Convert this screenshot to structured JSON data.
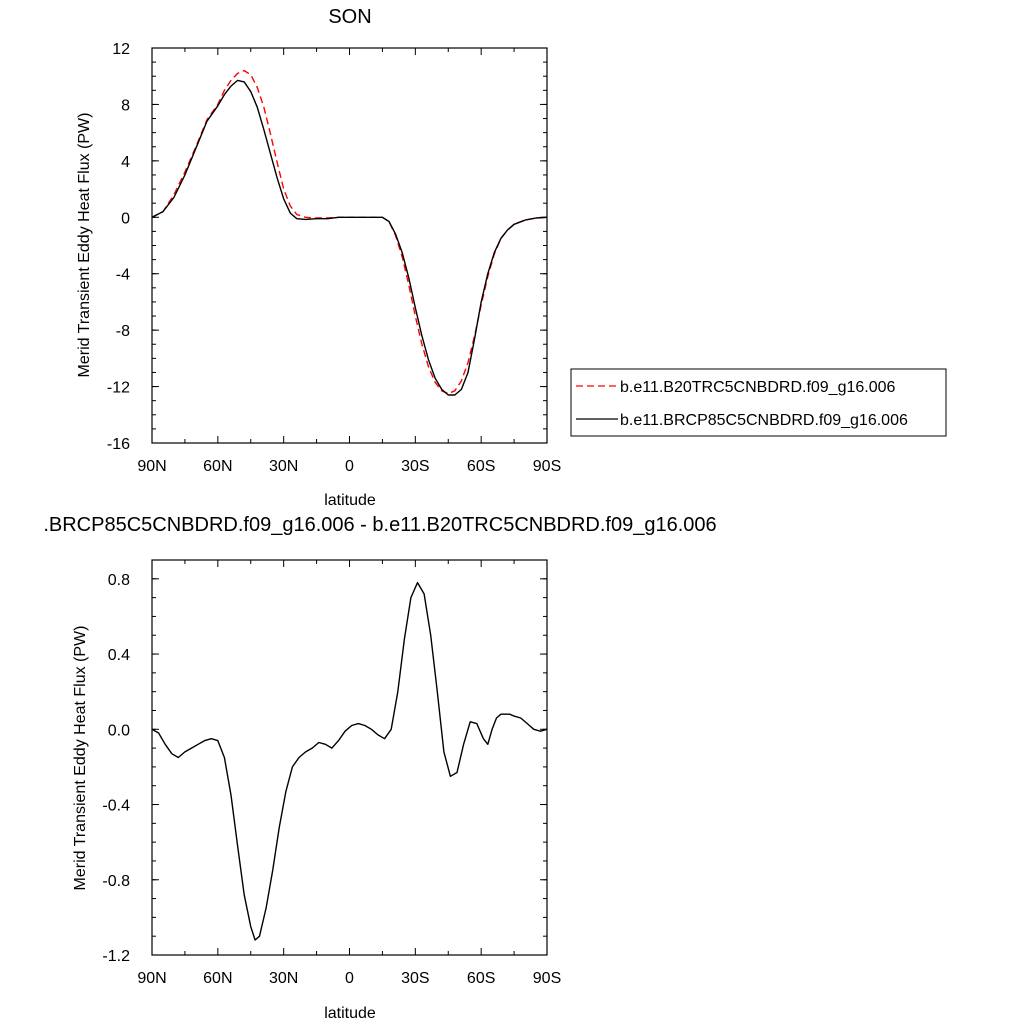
{
  "chart_data": [
    {
      "type": "line",
      "title": "SON",
      "xlabel": "latitude",
      "ylabel": "Merid Transient Eddy Heat Flux (PW)",
      "x_ticks": [
        "90N",
        "60N",
        "30N",
        "0",
        "30S",
        "60S",
        "90S"
      ],
      "x_tick_values": [
        -90,
        -60,
        -30,
        0,
        30,
        60,
        90
      ],
      "x_units": "degrees north (90N = -90, 90S = 90 on display axis)",
      "xlim": [
        -90,
        90
      ],
      "ylim": [
        -16,
        12
      ],
      "y_ticks": [
        12,
        8,
        4,
        0,
        -4,
        -8,
        -12,
        -16
      ],
      "y_tick_labels": [
        "12",
        "8",
        "4",
        "0",
        "-4",
        "-8",
        "-12",
        "-16"
      ],
      "grid": false,
      "legend_position": "right",
      "series": [
        {
          "name": "b.e11.B20TRC5CNBDRD.f09_g16.006",
          "color": "#ff0000",
          "dash": "dashed",
          "x": [
            -90,
            -85,
            -80,
            -75,
            -70,
            -65,
            -60,
            -57,
            -54,
            -51,
            -48,
            -45,
            -42,
            -39,
            -36,
            -33,
            -30,
            -27,
            -24,
            -20,
            -15,
            -10,
            -5,
            0,
            5,
            10,
            15,
            18,
            21,
            24,
            27,
            30,
            33,
            36,
            39,
            42,
            45,
            48,
            51,
            54,
            57,
            60,
            63,
            66,
            69,
            72,
            75,
            80,
            85,
            90
          ],
          "y": [
            0,
            0.4,
            1.6,
            3.2,
            5.0,
            6.9,
            8.0,
            9.0,
            9.7,
            10.2,
            10.4,
            10.1,
            9.2,
            7.8,
            5.9,
            3.9,
            2.0,
            0.8,
            0.2,
            0.0,
            -0.05,
            -0.05,
            0.0,
            0.0,
            0.0,
            0.0,
            0.0,
            -0.3,
            -1.3,
            -2.8,
            -4.8,
            -7.0,
            -9.0,
            -10.6,
            -11.7,
            -12.3,
            -12.5,
            -12.3,
            -11.6,
            -10.3,
            -8.4,
            -6.2,
            -4.2,
            -2.6,
            -1.5,
            -0.9,
            -0.5,
            -0.2,
            -0.05,
            0
          ]
        },
        {
          "name": "b.e11.BRCP85C5CNBDRD.f09_g16.006",
          "color": "#000000",
          "dash": "solid",
          "x": [
            -90,
            -85,
            -80,
            -75,
            -70,
            -65,
            -60,
            -57,
            -54,
            -51,
            -48,
            -45,
            -42,
            -39,
            -36,
            -33,
            -30,
            -27,
            -24,
            -20,
            -15,
            -10,
            -5,
            0,
            5,
            10,
            15,
            18,
            21,
            24,
            27,
            30,
            33,
            36,
            39,
            42,
            45,
            48,
            51,
            54,
            57,
            60,
            63,
            66,
            69,
            72,
            75,
            80,
            85,
            90
          ],
          "y": [
            0,
            0.4,
            1.4,
            3.0,
            4.9,
            6.8,
            7.9,
            8.7,
            9.3,
            9.7,
            9.6,
            8.9,
            7.8,
            6.2,
            4.5,
            2.8,
            1.3,
            0.3,
            -0.1,
            -0.15,
            -0.1,
            -0.1,
            0.0,
            0.0,
            0.0,
            0.0,
            0.0,
            -0.3,
            -1.2,
            -2.5,
            -4.3,
            -6.4,
            -8.4,
            -10.1,
            -11.4,
            -12.2,
            -12.6,
            -12.6,
            -12.2,
            -11.0,
            -8.6,
            -6.0,
            -4.0,
            -2.5,
            -1.5,
            -0.9,
            -0.5,
            -0.2,
            -0.05,
            0
          ]
        }
      ]
    },
    {
      "type": "line",
      "title": ".BRCP85C5CNBDRD.f09_g16.006 - b.e11.B20TRC5CNBDRD.f09_g16.006",
      "xlabel": "latitude",
      "ylabel": "Merid Transient Eddy Heat Flux (PW)",
      "x_ticks": [
        "90N",
        "60N",
        "30N",
        "0",
        "30S",
        "60S",
        "90S"
      ],
      "x_tick_values": [
        -90,
        -60,
        -30,
        0,
        30,
        60,
        90
      ],
      "xlim": [
        -90,
        90
      ],
      "ylim": [
        -1.2,
        0.9
      ],
      "y_ticks": [
        0.8,
        0.4,
        0.0,
        -0.4,
        -0.8,
        -1.2
      ],
      "y_tick_labels": [
        "0.8",
        "0.4",
        "0.0",
        "-0.4",
        "-0.8",
        "-1.2"
      ],
      "grid": false,
      "series": [
        {
          "color": "#000000",
          "dash": "solid",
          "x": [
            -90,
            -87,
            -84,
            -81,
            -78,
            -75,
            -72,
            -69,
            -66,
            -63,
            -60,
            -57,
            -54,
            -51,
            -48,
            -45,
            -43,
            -41,
            -38,
            -35,
            -32,
            -29,
            -26,
            -23,
            -20,
            -17,
            -14,
            -11,
            -8,
            -5,
            -2,
            1,
            4,
            7,
            10,
            13,
            16,
            19,
            22,
            25,
            28,
            31,
            34,
            37,
            40,
            43,
            46,
            49,
            52,
            55,
            58,
            61,
            63,
            65,
            67,
            69,
            71,
            73,
            75,
            78,
            81,
            84,
            87,
            90
          ],
          "y": [
            0,
            -0.02,
            -0.08,
            -0.13,
            -0.15,
            -0.12,
            -0.1,
            -0.08,
            -0.06,
            -0.05,
            -0.06,
            -0.15,
            -0.35,
            -0.62,
            -0.88,
            -1.05,
            -1.12,
            -1.1,
            -0.95,
            -0.75,
            -0.52,
            -0.33,
            -0.2,
            -0.15,
            -0.12,
            -0.1,
            -0.07,
            -0.08,
            -0.1,
            -0.06,
            -0.01,
            0.02,
            0.03,
            0.02,
            0.0,
            -0.03,
            -0.05,
            0.0,
            0.2,
            0.48,
            0.7,
            0.78,
            0.72,
            0.5,
            0.2,
            -0.12,
            -0.25,
            -0.23,
            -0.08,
            0.04,
            0.03,
            -0.05,
            -0.08,
            0.0,
            0.06,
            0.08,
            0.08,
            0.08,
            0.07,
            0.06,
            0.03,
            0.0,
            -0.01,
            0
          ]
        }
      ]
    }
  ]
}
